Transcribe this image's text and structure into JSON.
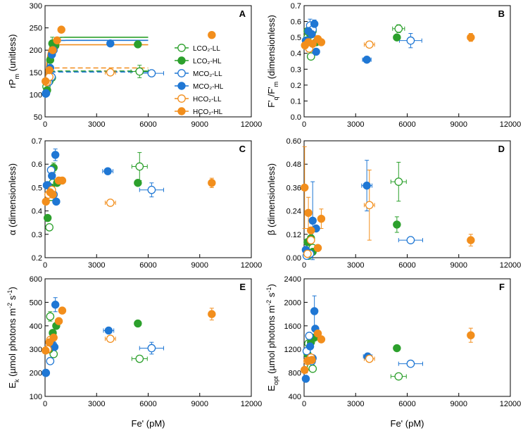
{
  "colors": {
    "L": "#2ca02c",
    "M": "#1f77d4",
    "H": "#f28e1c"
  },
  "xlabel": "Fe' (pM)",
  "legend": [
    {
      "name": "LCO2-LL",
      "label": "LCO₂-LL",
      "color": "#2ca02c",
      "filled": false
    },
    {
      "name": "LCO2-HL",
      "label": "LCO₂-HL",
      "color": "#2ca02c",
      "filled": true
    },
    {
      "name": "MCO2-LL",
      "label": "MCO₂-LL",
      "color": "#1f77d4",
      "filled": false
    },
    {
      "name": "MCO2-HL",
      "label": "MCO₂-HL",
      "color": "#1f77d4",
      "filled": true
    },
    {
      "name": "HCO2-LL",
      "label": "HCO₂-LL",
      "color": "#f28e1c",
      "filled": false
    },
    {
      "name": "HCO2-HL",
      "label": "HCO₂-HL",
      "color": "#f28e1c",
      "filled": true
    }
  ],
  "chart_data": [
    {
      "panel": "A",
      "type": "scatter",
      "ylabel": "rP_m (unitless)",
      "xlim": [
        0,
        12000
      ],
      "ylim": [
        50,
        300
      ],
      "xticks": [
        "0",
        "3000",
        "6000",
        "9000",
        "12000"
      ],
      "yticks": [
        "50",
        "100",
        "150",
        "200",
        "250",
        "300"
      ],
      "fits": [
        {
          "series": "LCO2-HL",
          "color": "#2ca02c",
          "dashed": false,
          "p0": 100,
          "pmax": 229,
          "k": 160
        },
        {
          "series": "MCO2-HL",
          "color": "#1f77d4",
          "dashed": false,
          "p0": 100,
          "pmax": 222,
          "k": 160
        },
        {
          "series": "HCO2-HL",
          "color": "#f28e1c",
          "dashed": false,
          "p0": 100,
          "pmax": 212,
          "k": 100
        },
        {
          "series": "LCO2-LL",
          "color": "#2ca02c",
          "dashed": true,
          "p0": 100,
          "pmax": 153,
          "k": 100
        },
        {
          "series": "MCO2-LL",
          "color": "#1f77d4",
          "dashed": true,
          "p0": 100,
          "pmax": 151,
          "k": 100
        },
        {
          "series": "HCO2-LL",
          "color": "#f28e1c",
          "dashed": true,
          "p0": 100,
          "pmax": 160,
          "k": 100
        }
      ],
      "points": [
        {
          "s": "LCO2-LL",
          "x": 80,
          "y": 118
        },
        {
          "s": "LCO2-LL",
          "x": 250,
          "y": 130
        },
        {
          "s": "LCO2-LL",
          "x": 400,
          "y": 138
        },
        {
          "s": "LCO2-LL",
          "x": 5500,
          "y": 152,
          "ye": 14,
          "xe": 500
        },
        {
          "s": "LCO2-HL",
          "x": 120,
          "y": 110
        },
        {
          "s": "LCO2-HL",
          "x": 300,
          "y": 178
        },
        {
          "s": "LCO2-HL",
          "x": 420,
          "y": 215,
          "ye": 14
        },
        {
          "s": "LCO2-HL",
          "x": 600,
          "y": 210
        },
        {
          "s": "LCO2-HL",
          "x": 5400,
          "y": 213
        },
        {
          "s": "MCO2-LL",
          "x": 60,
          "y": 103
        },
        {
          "s": "MCO2-LL",
          "x": 200,
          "y": 128
        },
        {
          "s": "MCO2-LL",
          "x": 380,
          "y": 140
        },
        {
          "s": "MCO2-LL",
          "x": 6200,
          "y": 148,
          "xe": 700
        },
        {
          "s": "MCO2-HL",
          "x": 40,
          "y": 102
        },
        {
          "s": "MCO2-HL",
          "x": 300,
          "y": 160
        },
        {
          "s": "MCO2-HL",
          "x": 400,
          "y": 190
        },
        {
          "s": "MCO2-HL",
          "x": 500,
          "y": 200
        },
        {
          "s": "MCO2-HL",
          "x": 3800,
          "y": 215
        },
        {
          "s": "HCO2-LL",
          "x": 100,
          "y": 128
        },
        {
          "s": "HCO2-LL",
          "x": 250,
          "y": 140
        },
        {
          "s": "HCO2-LL",
          "x": 3800,
          "y": 150,
          "xe": 300
        },
        {
          "s": "HCO2-HL",
          "x": 30,
          "y": 130
        },
        {
          "s": "HCO2-HL",
          "x": 250,
          "y": 155
        },
        {
          "s": "HCO2-HL",
          "x": 450,
          "y": 200
        },
        {
          "s": "HCO2-HL",
          "x": 700,
          "y": 222
        },
        {
          "s": "HCO2-HL",
          "x": 950,
          "y": 246
        },
        {
          "s": "HCO2-HL",
          "x": 9700,
          "y": 234
        }
      ]
    },
    {
      "panel": "B",
      "type": "scatter",
      "ylabel": "F'_q/F'_m (dimensionless)",
      "xlim": [
        0,
        12000
      ],
      "ylim": [
        0,
        0.7
      ],
      "xticks": [
        "0",
        "3000",
        "6000",
        "9000",
        "12000"
      ],
      "yticks": [
        "0.0",
        "0.1",
        "0.2",
        "0.3",
        "0.4",
        "0.5",
        "0.6",
        "0.7"
      ],
      "points": [
        {
          "s": "LCO2-LL",
          "x": 200,
          "y": 0.5
        },
        {
          "s": "LCO2-LL",
          "x": 300,
          "y": 0.44
        },
        {
          "s": "LCO2-LL",
          "x": 400,
          "y": 0.38
        },
        {
          "s": "LCO2-LL",
          "x": 5500,
          "y": 0.555,
          "ye": 0.025,
          "xe": 350
        },
        {
          "s": "LCO2-HL",
          "x": 200,
          "y": 0.54
        },
        {
          "s": "LCO2-HL",
          "x": 350,
          "y": 0.52
        },
        {
          "s": "LCO2-HL",
          "x": 500,
          "y": 0.54
        },
        {
          "s": "LCO2-HL",
          "x": 700,
          "y": 0.47
        },
        {
          "s": "LCO2-HL",
          "x": 5400,
          "y": 0.5
        },
        {
          "s": "MCO2-LL",
          "x": 150,
          "y": 0.48
        },
        {
          "s": "MCO2-LL",
          "x": 350,
          "y": 0.575,
          "ye": 0.04
        },
        {
          "s": "MCO2-LL",
          "x": 500,
          "y": 0.55
        },
        {
          "s": "MCO2-LL",
          "x": 6200,
          "y": 0.48,
          "ye": 0.045,
          "xe": 650
        },
        {
          "s": "MCO2-HL",
          "x": 100,
          "y": 0.48
        },
        {
          "s": "MCO2-HL",
          "x": 250,
          "y": 0.54
        },
        {
          "s": "MCO2-HL",
          "x": 450,
          "y": 0.52
        },
        {
          "s": "MCO2-HL",
          "x": 600,
          "y": 0.585,
          "ye": 0.025
        },
        {
          "s": "MCO2-HL",
          "x": 700,
          "y": 0.41
        },
        {
          "s": "MCO2-HL",
          "x": 3650,
          "y": 0.36,
          "xe": 250
        },
        {
          "s": "HCO2-LL",
          "x": 150,
          "y": 0.455
        },
        {
          "s": "HCO2-LL",
          "x": 300,
          "y": 0.43
        },
        {
          "s": "HCO2-LL",
          "x": 3800,
          "y": 0.455,
          "xe": 300
        },
        {
          "s": "HCO2-HL",
          "x": 50,
          "y": 0.45
        },
        {
          "s": "HCO2-HL",
          "x": 250,
          "y": 0.47
        },
        {
          "s": "HCO2-HL",
          "x": 500,
          "y": 0.46
        },
        {
          "s": "HCO2-HL",
          "x": 800,
          "y": 0.49
        },
        {
          "s": "HCO2-HL",
          "x": 1000,
          "y": 0.47
        },
        {
          "s": "HCO2-HL",
          "x": 9700,
          "y": 0.5,
          "ye": 0.025
        }
      ]
    },
    {
      "panel": "C",
      "type": "scatter",
      "ylabel": "α (dimensionless)",
      "xlim": [
        0,
        12000
      ],
      "ylim": [
        0.2,
        0.7
      ],
      "xticks": [
        "0",
        "3000",
        "6000",
        "9000",
        "12000"
      ],
      "yticks": [
        "0.2",
        "0.3",
        "0.4",
        "0.5",
        "0.6",
        "0.7"
      ],
      "points": [
        {
          "s": "LCO2-LL",
          "x": 250,
          "y": 0.33
        },
        {
          "s": "LCO2-LL",
          "x": 350,
          "y": 0.46
        },
        {
          "s": "LCO2-LL",
          "x": 450,
          "y": 0.52
        },
        {
          "s": "LCO2-LL",
          "x": 5500,
          "y": 0.59,
          "ye": 0.06,
          "xe": 450
        },
        {
          "s": "LCO2-HL",
          "x": 150,
          "y": 0.37
        },
        {
          "s": "LCO2-HL",
          "x": 350,
          "y": 0.5
        },
        {
          "s": "LCO2-HL",
          "x": 500,
          "y": 0.585,
          "ye": 0.02
        },
        {
          "s": "LCO2-HL",
          "x": 700,
          "y": 0.52
        },
        {
          "s": "LCO2-HL",
          "x": 5400,
          "y": 0.52
        },
        {
          "s": "MCO2-LL",
          "x": 150,
          "y": 0.51
        },
        {
          "s": "MCO2-LL",
          "x": 350,
          "y": 0.575
        },
        {
          "s": "MCO2-LL",
          "x": 500,
          "y": 0.47
        },
        {
          "s": "MCO2-LL",
          "x": 6200,
          "y": 0.49,
          "ye": 0.03,
          "xe": 700
        },
        {
          "s": "MCO2-HL",
          "x": 100,
          "y": 0.51
        },
        {
          "s": "MCO2-HL",
          "x": 400,
          "y": 0.55
        },
        {
          "s": "MCO2-HL",
          "x": 600,
          "y": 0.64,
          "ye": 0.025
        },
        {
          "s": "MCO2-HL",
          "x": 650,
          "y": 0.44
        },
        {
          "s": "MCO2-HL",
          "x": 3650,
          "y": 0.57,
          "xe": 300
        },
        {
          "s": "HCO2-LL",
          "x": 200,
          "y": 0.47
        },
        {
          "s": "HCO2-LL",
          "x": 400,
          "y": 0.49
        },
        {
          "s": "HCO2-LL",
          "x": 3800,
          "y": 0.435,
          "xe": 300
        },
        {
          "s": "HCO2-HL",
          "x": 50,
          "y": 0.44
        },
        {
          "s": "HCO2-HL",
          "x": 300,
          "y": 0.48
        },
        {
          "s": "HCO2-HL",
          "x": 450,
          "y": 0.47
        },
        {
          "s": "HCO2-HL",
          "x": 800,
          "y": 0.53
        },
        {
          "s": "HCO2-HL",
          "x": 1000,
          "y": 0.53
        },
        {
          "s": "HCO2-HL",
          "x": 9700,
          "y": 0.52,
          "ye": 0.02
        }
      ]
    },
    {
      "panel": "D",
      "type": "scatter",
      "ylabel": "β (dimensionless)",
      "xlim": [
        0,
        12000
      ],
      "ylim": [
        0,
        0.6
      ],
      "xticks": [
        "0",
        "3000",
        "6000",
        "9000",
        "12000"
      ],
      "yticks": [
        "0.00",
        "0.12",
        "0.24",
        "0.36",
        "0.48",
        "0.60"
      ],
      "points": [
        {
          "s": "LCO2-LL",
          "x": 250,
          "y": 0.01
        },
        {
          "s": "LCO2-LL",
          "x": 400,
          "y": 0.03
        },
        {
          "s": "LCO2-LL",
          "x": 500,
          "y": 0.05
        },
        {
          "s": "LCO2-LL",
          "x": 5500,
          "y": 0.39,
          "ye": 0.1,
          "xe": 450
        },
        {
          "s": "LCO2-HL",
          "x": 200,
          "y": 0.08
        },
        {
          "s": "LCO2-HL",
          "x": 400,
          "y": 0.1
        },
        {
          "s": "LCO2-HL",
          "x": 500,
          "y": 0.03
        },
        {
          "s": "LCO2-HL",
          "x": 5400,
          "y": 0.17,
          "ye": 0.04
        },
        {
          "s": "MCO2-LL",
          "x": 150,
          "y": 0.01
        },
        {
          "s": "MCO2-LL",
          "x": 350,
          "y": 0.02
        },
        {
          "s": "MCO2-LL",
          "x": 6200,
          "y": 0.09,
          "xe": 700
        },
        {
          "s": "MCO2-HL",
          "x": 100,
          "y": 0.04
        },
        {
          "s": "MCO2-HL",
          "x": 500,
          "y": 0.19,
          "ye": 0.2
        },
        {
          "s": "MCO2-HL",
          "x": 700,
          "y": 0.15
        },
        {
          "s": "MCO2-HL",
          "x": 3650,
          "y": 0.37,
          "ye": 0.13,
          "xe": 300
        },
        {
          "s": "HCO2-LL",
          "x": 200,
          "y": 0.02
        },
        {
          "s": "HCO2-LL",
          "x": 400,
          "y": 0.09
        },
        {
          "s": "HCO2-LL",
          "x": 3800,
          "y": 0.27,
          "ye": 0.18,
          "xe": 300
        },
        {
          "s": "HCO2-HL",
          "x": 30,
          "y": 0.36,
          "ye": 0.21
        },
        {
          "s": "HCO2-HL",
          "x": 250,
          "y": 0.23,
          "ye": 0.08
        },
        {
          "s": "HCO2-HL",
          "x": 400,
          "y": 0.14
        },
        {
          "s": "HCO2-HL",
          "x": 800,
          "y": 0.05
        },
        {
          "s": "HCO2-HL",
          "x": 1000,
          "y": 0.2,
          "ye": 0.05
        },
        {
          "s": "HCO2-HL",
          "x": 9700,
          "y": 0.09,
          "ye": 0.03
        }
      ]
    },
    {
      "panel": "E",
      "type": "scatter",
      "ylabel": "E_k (µmol photons m^-2 s^-1)",
      "xlim": [
        0,
        12000
      ],
      "ylim": [
        100,
        600
      ],
      "xticks": [
        "0",
        "3000",
        "6000",
        "9000",
        "12000"
      ],
      "yticks": [
        "100",
        "200",
        "300",
        "400",
        "500",
        "600"
      ],
      "points": [
        {
          "s": "LCO2-LL",
          "x": 300,
          "y": 440,
          "ye": 20
        },
        {
          "s": "LCO2-LL",
          "x": 400,
          "y": 320
        },
        {
          "s": "LCO2-LL",
          "x": 500,
          "y": 280
        },
        {
          "s": "LCO2-LL",
          "x": 5500,
          "y": 260,
          "xe": 450
        },
        {
          "s": "LCO2-HL",
          "x": 250,
          "y": 300
        },
        {
          "s": "LCO2-HL",
          "x": 450,
          "y": 370
        },
        {
          "s": "LCO2-HL",
          "x": 650,
          "y": 400
        },
        {
          "s": "LCO2-HL",
          "x": 5400,
          "y": 410
        },
        {
          "s": "MCO2-LL",
          "x": 50,
          "y": 200
        },
        {
          "s": "MCO2-LL",
          "x": 300,
          "y": 250
        },
        {
          "s": "MCO2-LL",
          "x": 450,
          "y": 320
        },
        {
          "s": "MCO2-LL",
          "x": 6200,
          "y": 305,
          "ye": 25,
          "xe": 700
        },
        {
          "s": "MCO2-HL",
          "x": 40,
          "y": 200
        },
        {
          "s": "MCO2-HL",
          "x": 350,
          "y": 330
        },
        {
          "s": "MCO2-HL",
          "x": 550,
          "y": 310
        },
        {
          "s": "MCO2-HL",
          "x": 600,
          "y": 490,
          "ye": 30
        },
        {
          "s": "MCO2-HL",
          "x": 3700,
          "y": 380,
          "xe": 300
        },
        {
          "s": "HCO2-LL",
          "x": 150,
          "y": 300
        },
        {
          "s": "HCO2-LL",
          "x": 300,
          "y": 340
        },
        {
          "s": "HCO2-LL",
          "x": 3800,
          "y": 345,
          "xe": 300
        },
        {
          "s": "HCO2-HL",
          "x": 30,
          "y": 295
        },
        {
          "s": "HCO2-HL",
          "x": 250,
          "y": 330
        },
        {
          "s": "HCO2-HL",
          "x": 500,
          "y": 350
        },
        {
          "s": "HCO2-HL",
          "x": 800,
          "y": 420
        },
        {
          "s": "HCO2-HL",
          "x": 1000,
          "y": 465
        },
        {
          "s": "HCO2-HL",
          "x": 9700,
          "y": 450,
          "ye": 25
        }
      ]
    },
    {
      "panel": "F",
      "type": "scatter",
      "ylabel": "E_opt (µmol photons m^-2 s^-1)",
      "xlim": [
        0,
        12000
      ],
      "ylim": [
        400,
        2400
      ],
      "xticks": [
        "0",
        "3000",
        "6000",
        "9000",
        "12000"
      ],
      "yticks": [
        "400",
        "800",
        "1200",
        "1600",
        "2000",
        "2400"
      ],
      "points": [
        {
          "s": "LCO2-LL",
          "x": 250,
          "y": 1300
        },
        {
          "s": "LCO2-LL",
          "x": 400,
          "y": 900
        },
        {
          "s": "LCO2-LL",
          "x": 500,
          "y": 870
        },
        {
          "s": "LCO2-LL",
          "x": 5500,
          "y": 740,
          "xe": 450
        },
        {
          "s": "LCO2-HL",
          "x": 200,
          "y": 1120
        },
        {
          "s": "LCO2-HL",
          "x": 400,
          "y": 1320
        },
        {
          "s": "LCO2-HL",
          "x": 600,
          "y": 1400
        },
        {
          "s": "LCO2-HL",
          "x": 5400,
          "y": 1220
        },
        {
          "s": "MCO2-LL",
          "x": 150,
          "y": 1170
        },
        {
          "s": "MCO2-LL",
          "x": 300,
          "y": 1430
        },
        {
          "s": "MCO2-LL",
          "x": 450,
          "y": 1000
        },
        {
          "s": "MCO2-LL",
          "x": 6200,
          "y": 955,
          "xe": 700
        },
        {
          "s": "MCO2-HL",
          "x": 100,
          "y": 700
        },
        {
          "s": "MCO2-HL",
          "x": 350,
          "y": 1250
        },
        {
          "s": "MCO2-HL",
          "x": 500,
          "y": 1050
        },
        {
          "s": "MCO2-HL",
          "x": 600,
          "y": 1850,
          "ye": 260
        },
        {
          "s": "MCO2-HL",
          "x": 650,
          "y": 1550
        },
        {
          "s": "MCO2-HL",
          "x": 3700,
          "y": 1080,
          "xe": 250
        },
        {
          "s": "HCO2-LL",
          "x": 200,
          "y": 1000
        },
        {
          "s": "HCO2-LL",
          "x": 400,
          "y": 1060
        },
        {
          "s": "HCO2-LL",
          "x": 3800,
          "y": 1040,
          "xe": 300
        },
        {
          "s": "HCO2-HL",
          "x": 30,
          "y": 850
        },
        {
          "s": "HCO2-HL",
          "x": 250,
          "y": 1010
        },
        {
          "s": "HCO2-HL",
          "x": 450,
          "y": 1020
        },
        {
          "s": "HCO2-HL",
          "x": 800,
          "y": 1470
        },
        {
          "s": "HCO2-HL",
          "x": 1000,
          "y": 1370
        },
        {
          "s": "HCO2-HL",
          "x": 9700,
          "y": 1440,
          "ye": 120
        }
      ]
    }
  ]
}
